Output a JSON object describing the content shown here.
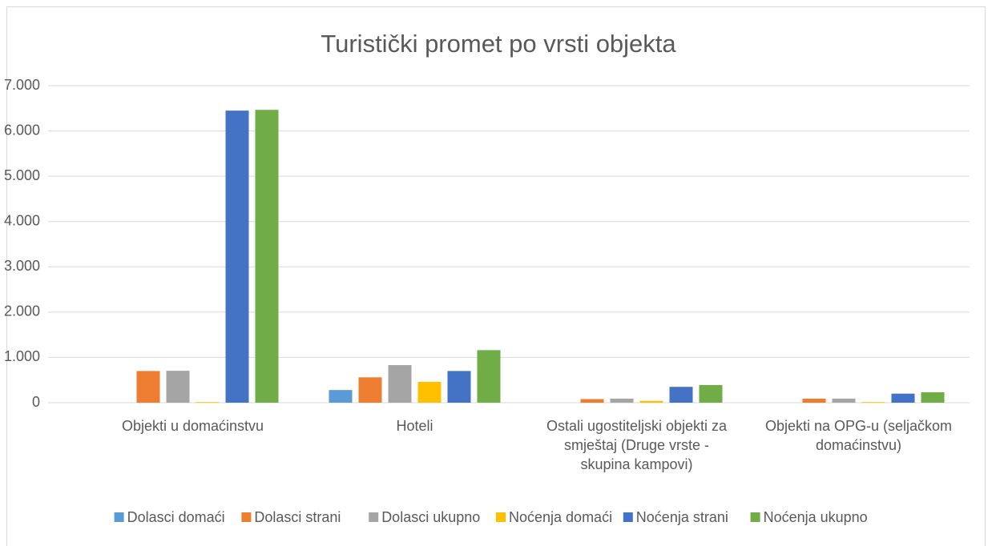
{
  "chart_data": {
    "type": "bar",
    "title": "Turistički promet po vrsti objekta",
    "categories": [
      "Objekti u domaćinstvu",
      "Hoteli",
      "Ostali ugostiteljski objekti za smještaj (Druge vrste - skupina kampovi)",
      "Objekti na OPG-u (seljačkom domaćinstvu)"
    ],
    "series": [
      {
        "name": "Dolasci domaći",
        "color": "#5b9bd5",
        "values": [
          0,
          280,
          0,
          0
        ]
      },
      {
        "name": "Dolasci strani",
        "color": "#ed7d31",
        "values": [
          700,
          560,
          80,
          90
        ]
      },
      {
        "name": "Dolasci ukupno",
        "color": "#a5a5a5",
        "values": [
          705,
          830,
          90,
          90
        ]
      },
      {
        "name": "Noćenja domaći",
        "color": "#ffc000",
        "values": [
          15,
          460,
          40,
          15
        ]
      },
      {
        "name": "Noćenja strani",
        "color": "#4472c4",
        "values": [
          6449,
          700,
          350,
          200
        ]
      },
      {
        "name": "Noćenja ukupno",
        "color": "#70ad47",
        "values": [
          6466,
          1160,
          390,
          230
        ]
      }
    ],
    "ylim": [
      0,
      7000
    ],
    "yticks": [
      0,
      {
        "value": 1000,
        "label": "1.000"
      },
      {
        "value": 2000,
        "label": "2.000"
      },
      {
        "value": 3000,
        "label": "3.000"
      },
      {
        "value": 4000,
        "label": "4.000"
      },
      {
        "value": 5000,
        "label": "5.000"
      },
      {
        "value": 6000,
        "label": "6.000"
      },
      {
        "value": 7000,
        "label": "7.000"
      }
    ],
    "grid": true,
    "legend": "bottom"
  }
}
